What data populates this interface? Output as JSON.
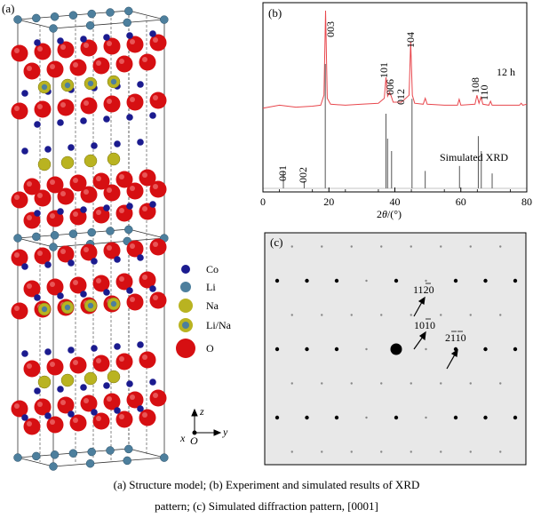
{
  "panel_a": {
    "label": "(a)",
    "legend": [
      {
        "label": "Co",
        "color": "#1b1b8f"
      },
      {
        "label": "Li",
        "color": "#4d7f9d"
      },
      {
        "label": "Na",
        "color": "#b9b321"
      },
      {
        "label": "Li/Na",
        "color": "#b9b321"
      },
      {
        "label": "O",
        "color": "#d60f12"
      }
    ],
    "axes": {
      "z": "z",
      "x": "x",
      "y": "y",
      "origin": "O"
    }
  },
  "panel_b": {
    "label": "(b)",
    "annotation": "12 h",
    "simulated_label": "Simulated XRD",
    "xlabel_theta": "θ",
    "xlabel_prefix": "2",
    "xlabel_suffix": "/(°)",
    "peak_labels_exp": [
      "003",
      "101",
      "006",
      "012",
      "104",
      "108",
      "110"
    ],
    "peak_labels_sim": [
      "001",
      "002"
    ]
  },
  "panel_c": {
    "label": "(c)",
    "spot_labels": [
      "11",
      "2",
      "0",
      "10",
      "1",
      "0",
      "2",
      "1",
      "1",
      "0"
    ],
    "labels": {
      "l1": [
        "11",
        "2",
        "0"
      ],
      "l2": [
        "10",
        "1",
        "0"
      ],
      "l3": [
        "2",
        "1",
        "1",
        "0"
      ]
    }
  },
  "caption": {
    "line1": "(a) Structure model; (b) Experiment and simulated results of XRD",
    "line2": "pattern; (c) Simulated diffraction pattern, [0001]"
  },
  "chart_data": {
    "type": "line",
    "title": "",
    "xlabel": "2θ/(°)",
    "ylabel": "",
    "xlim": [
      0,
      80
    ],
    "xticks": [
      0,
      20,
      40,
      60,
      80
    ],
    "series": [
      {
        "name": "12 h",
        "x": [
          0,
          5,
          10,
          15,
          17.5,
          18.5,
          19.0,
          19.5,
          20.5,
          25,
          30,
          35,
          36.8,
          37.3,
          37.8,
          38.4,
          38.9,
          39.5,
          42,
          44.3,
          44.8,
          45.3,
          46,
          48.6,
          49.2,
          49.8,
          55,
          59,
          59.5,
          60,
          64.3,
          64.9,
          65.5,
          66.1,
          66.7,
          68.5,
          69,
          69.5,
          74,
          77.8,
          78.3,
          78.8,
          80
        ],
        "y": [
          0.02,
          0.05,
          0.03,
          0.04,
          0.05,
          0.15,
          1.0,
          0.12,
          0.06,
          0.05,
          0.06,
          0.07,
          0.12,
          0.33,
          0.14,
          0.18,
          0.14,
          0.08,
          0.08,
          0.15,
          0.69,
          0.15,
          0.07,
          0.06,
          0.12,
          0.06,
          0.05,
          0.05,
          0.11,
          0.05,
          0.06,
          0.15,
          0.07,
          0.13,
          0.06,
          0.05,
          0.09,
          0.05,
          0.05,
          0.05,
          0.07,
          0.05,
          0.06
        ]
      },
      {
        "name": "Simulated XRD",
        "sticks": [
          {
            "x": 6.2,
            "y": 0.14
          },
          {
            "x": 12.5,
            "y": 0.06
          },
          {
            "x": 18.9,
            "y": 1.0
          },
          {
            "x": 37.3,
            "y": 0.6
          },
          {
            "x": 37.8,
            "y": 0.4
          },
          {
            "x": 39.0,
            "y": 0.3
          },
          {
            "x": 45.2,
            "y": 0.72
          },
          {
            "x": 49.2,
            "y": 0.14
          },
          {
            "x": 59.6,
            "y": 0.18
          },
          {
            "x": 65.3,
            "y": 0.42
          },
          {
            "x": 66.2,
            "y": 0.3
          },
          {
            "x": 69.5,
            "y": 0.12
          }
        ]
      }
    ]
  }
}
